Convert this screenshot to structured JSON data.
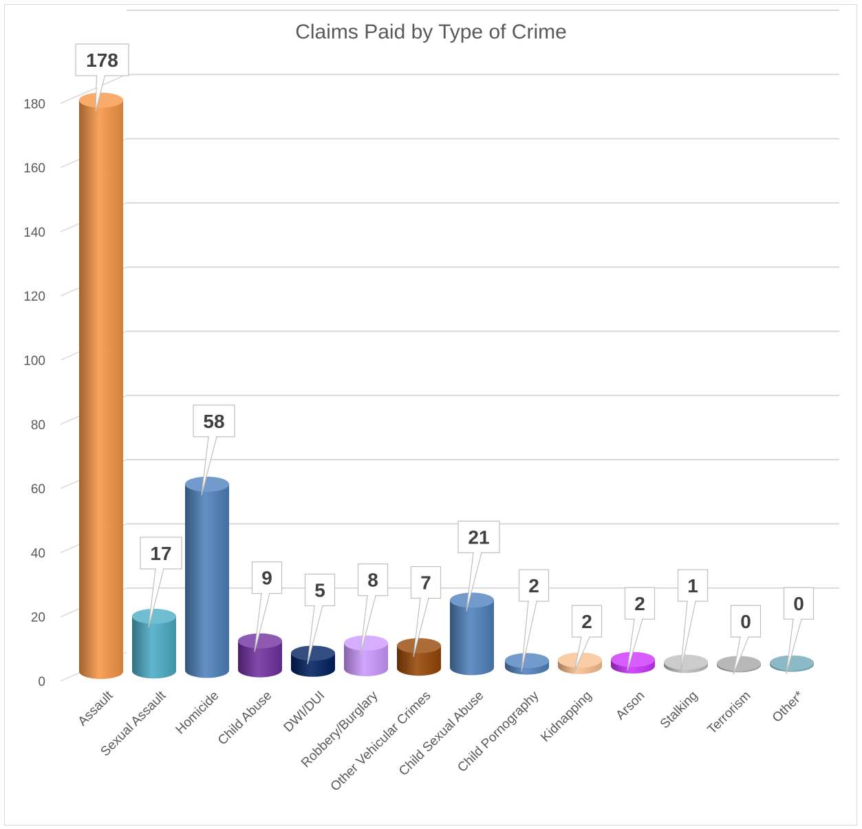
{
  "chart_data": {
    "type": "bar",
    "title": "Claims Paid by Type of Crime",
    "xlabel": "",
    "ylabel": "",
    "ylim": [
      0,
      180
    ],
    "yticks": [
      "0",
      "20",
      "40",
      "60",
      "80",
      "100",
      "120",
      "140",
      "160",
      "180"
    ],
    "grid": true,
    "legend": "none",
    "categories": [
      "Assault",
      "Sexual Assault",
      "Homicide",
      "Child Abuse",
      "DWI/DUI",
      "Robbery/Burglary",
      "Other Vehicular Crimes",
      "Child Sexual Abuse",
      "Child Pornography",
      "Kidnapping",
      "Arson",
      "Stalking",
      "Terrorism",
      "Other*"
    ],
    "values": [
      178,
      17,
      58,
      9,
      5,
      8,
      7,
      21,
      2,
      2,
      2,
      1,
      0,
      0
    ],
    "colors": [
      "#f79646",
      "#4bacc6",
      "#4f81bd",
      "#7030a0",
      "#002060",
      "#cc99ff",
      "#974706",
      "#4f81bd",
      "#4f81bd",
      "#fac090",
      "#cc33ff",
      "#bfbfbf",
      "#a6a6a6",
      "#6fa8b8"
    ]
  }
}
